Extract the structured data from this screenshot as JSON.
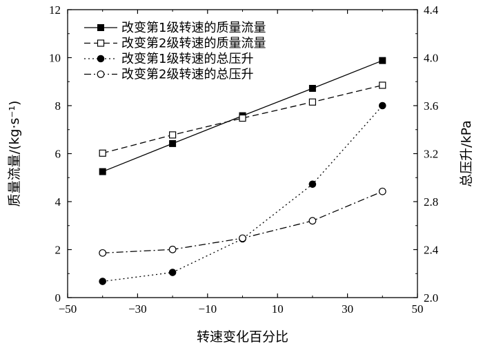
{
  "chart_data": {
    "type": "line",
    "title": "",
    "xlabel": "转速变化百分比",
    "ylabel": "质量流量/(kg·s⁻¹)",
    "y2label": "总压升/kPa",
    "xlim": [
      -50,
      50
    ],
    "ylim": [
      0,
      12
    ],
    "y2lim": [
      2.0,
      4.4
    ],
    "xticks": [
      -50,
      -30,
      -10,
      10,
      30,
      50
    ],
    "yticks": [
      0,
      2,
      4,
      6,
      8,
      10,
      12
    ],
    "y2ticks": [
      "2.0",
      "2.4",
      "2.8",
      "3.2",
      "3.6",
      "4.0",
      "4.4"
    ],
    "grid": false,
    "legend_position": "top-left",
    "x": [
      -40,
      -20,
      0,
      20,
      40
    ],
    "series": [
      {
        "name": "改变第1级转速的质量流量",
        "axis": "left",
        "values": [
          5.25,
          6.42,
          7.58,
          8.72,
          9.88
        ],
        "line": "solid",
        "marker": "filled-square"
      },
      {
        "name": "改变第2级转速的质量流量",
        "axis": "left",
        "values": [
          6.02,
          6.78,
          7.48,
          8.15,
          8.85
        ],
        "line": "dashed",
        "marker": "open-square"
      },
      {
        "name": "改变第1级转速的总压升",
        "axis": "right",
        "values": [
          2.135,
          2.21,
          2.49,
          2.945,
          3.6
        ],
        "line": "dotted",
        "marker": "filled-circle"
      },
      {
        "name": "改变第2级转速的总压升",
        "axis": "right",
        "values": [
          2.372,
          2.401,
          2.495,
          2.64,
          2.885
        ],
        "line": "dash-dot",
        "marker": "open-circle"
      }
    ]
  }
}
